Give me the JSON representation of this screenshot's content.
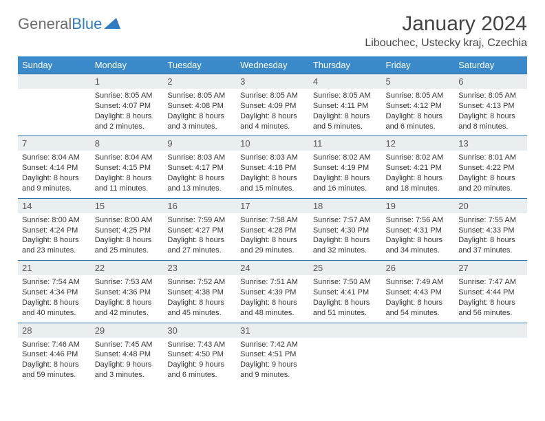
{
  "logo": {
    "text_gray": "General",
    "text_blue": "Blue"
  },
  "title": "January 2024",
  "location": "Libouchec, Ustecky kraj, Czechia",
  "colors": {
    "header_bg": "#3a8acb",
    "header_text": "#ffffff",
    "daynum_bg": "#e9eef1",
    "border_top": "#2f6fa3",
    "body_text": "#333333",
    "logo_gray": "#6b6b6b",
    "logo_blue": "#2f7dc0"
  },
  "weekdays": [
    "Sunday",
    "Monday",
    "Tuesday",
    "Wednesday",
    "Thursday",
    "Friday",
    "Saturday"
  ],
  "weeks": [
    {
      "nums": [
        "",
        "1",
        "2",
        "3",
        "4",
        "5",
        "6"
      ],
      "cells": [
        {
          "sunrise": "",
          "sunset": "",
          "daylight": ""
        },
        {
          "sunrise": "Sunrise: 8:05 AM",
          "sunset": "Sunset: 4:07 PM",
          "daylight": "Daylight: 8 hours and 2 minutes."
        },
        {
          "sunrise": "Sunrise: 8:05 AM",
          "sunset": "Sunset: 4:08 PM",
          "daylight": "Daylight: 8 hours and 3 minutes."
        },
        {
          "sunrise": "Sunrise: 8:05 AM",
          "sunset": "Sunset: 4:09 PM",
          "daylight": "Daylight: 8 hours and 4 minutes."
        },
        {
          "sunrise": "Sunrise: 8:05 AM",
          "sunset": "Sunset: 4:11 PM",
          "daylight": "Daylight: 8 hours and 5 minutes."
        },
        {
          "sunrise": "Sunrise: 8:05 AM",
          "sunset": "Sunset: 4:12 PM",
          "daylight": "Daylight: 8 hours and 6 minutes."
        },
        {
          "sunrise": "Sunrise: 8:05 AM",
          "sunset": "Sunset: 4:13 PM",
          "daylight": "Daylight: 8 hours and 8 minutes."
        }
      ]
    },
    {
      "nums": [
        "7",
        "8",
        "9",
        "10",
        "11",
        "12",
        "13"
      ],
      "cells": [
        {
          "sunrise": "Sunrise: 8:04 AM",
          "sunset": "Sunset: 4:14 PM",
          "daylight": "Daylight: 8 hours and 9 minutes."
        },
        {
          "sunrise": "Sunrise: 8:04 AM",
          "sunset": "Sunset: 4:15 PM",
          "daylight": "Daylight: 8 hours and 11 minutes."
        },
        {
          "sunrise": "Sunrise: 8:03 AM",
          "sunset": "Sunset: 4:17 PM",
          "daylight": "Daylight: 8 hours and 13 minutes."
        },
        {
          "sunrise": "Sunrise: 8:03 AM",
          "sunset": "Sunset: 4:18 PM",
          "daylight": "Daylight: 8 hours and 15 minutes."
        },
        {
          "sunrise": "Sunrise: 8:02 AM",
          "sunset": "Sunset: 4:19 PM",
          "daylight": "Daylight: 8 hours and 16 minutes."
        },
        {
          "sunrise": "Sunrise: 8:02 AM",
          "sunset": "Sunset: 4:21 PM",
          "daylight": "Daylight: 8 hours and 18 minutes."
        },
        {
          "sunrise": "Sunrise: 8:01 AM",
          "sunset": "Sunset: 4:22 PM",
          "daylight": "Daylight: 8 hours and 20 minutes."
        }
      ]
    },
    {
      "nums": [
        "14",
        "15",
        "16",
        "17",
        "18",
        "19",
        "20"
      ],
      "cells": [
        {
          "sunrise": "Sunrise: 8:00 AM",
          "sunset": "Sunset: 4:24 PM",
          "daylight": "Daylight: 8 hours and 23 minutes."
        },
        {
          "sunrise": "Sunrise: 8:00 AM",
          "sunset": "Sunset: 4:25 PM",
          "daylight": "Daylight: 8 hours and 25 minutes."
        },
        {
          "sunrise": "Sunrise: 7:59 AM",
          "sunset": "Sunset: 4:27 PM",
          "daylight": "Daylight: 8 hours and 27 minutes."
        },
        {
          "sunrise": "Sunrise: 7:58 AM",
          "sunset": "Sunset: 4:28 PM",
          "daylight": "Daylight: 8 hours and 29 minutes."
        },
        {
          "sunrise": "Sunrise: 7:57 AM",
          "sunset": "Sunset: 4:30 PM",
          "daylight": "Daylight: 8 hours and 32 minutes."
        },
        {
          "sunrise": "Sunrise: 7:56 AM",
          "sunset": "Sunset: 4:31 PM",
          "daylight": "Daylight: 8 hours and 34 minutes."
        },
        {
          "sunrise": "Sunrise: 7:55 AM",
          "sunset": "Sunset: 4:33 PM",
          "daylight": "Daylight: 8 hours and 37 minutes."
        }
      ]
    },
    {
      "nums": [
        "21",
        "22",
        "23",
        "24",
        "25",
        "26",
        "27"
      ],
      "cells": [
        {
          "sunrise": "Sunrise: 7:54 AM",
          "sunset": "Sunset: 4:34 PM",
          "daylight": "Daylight: 8 hours and 40 minutes."
        },
        {
          "sunrise": "Sunrise: 7:53 AM",
          "sunset": "Sunset: 4:36 PM",
          "daylight": "Daylight: 8 hours and 42 minutes."
        },
        {
          "sunrise": "Sunrise: 7:52 AM",
          "sunset": "Sunset: 4:38 PM",
          "daylight": "Daylight: 8 hours and 45 minutes."
        },
        {
          "sunrise": "Sunrise: 7:51 AM",
          "sunset": "Sunset: 4:39 PM",
          "daylight": "Daylight: 8 hours and 48 minutes."
        },
        {
          "sunrise": "Sunrise: 7:50 AM",
          "sunset": "Sunset: 4:41 PM",
          "daylight": "Daylight: 8 hours and 51 minutes."
        },
        {
          "sunrise": "Sunrise: 7:49 AM",
          "sunset": "Sunset: 4:43 PM",
          "daylight": "Daylight: 8 hours and 54 minutes."
        },
        {
          "sunrise": "Sunrise: 7:47 AM",
          "sunset": "Sunset: 4:44 PM",
          "daylight": "Daylight: 8 hours and 56 minutes."
        }
      ]
    },
    {
      "nums": [
        "28",
        "29",
        "30",
        "31",
        "",
        "",
        ""
      ],
      "cells": [
        {
          "sunrise": "Sunrise: 7:46 AM",
          "sunset": "Sunset: 4:46 PM",
          "daylight": "Daylight: 8 hours and 59 minutes."
        },
        {
          "sunrise": "Sunrise: 7:45 AM",
          "sunset": "Sunset: 4:48 PM",
          "daylight": "Daylight: 9 hours and 3 minutes."
        },
        {
          "sunrise": "Sunrise: 7:43 AM",
          "sunset": "Sunset: 4:50 PM",
          "daylight": "Daylight: 9 hours and 6 minutes."
        },
        {
          "sunrise": "Sunrise: 7:42 AM",
          "sunset": "Sunset: 4:51 PM",
          "daylight": "Daylight: 9 hours and 9 minutes."
        },
        {
          "sunrise": "",
          "sunset": "",
          "daylight": ""
        },
        {
          "sunrise": "",
          "sunset": "",
          "daylight": ""
        },
        {
          "sunrise": "",
          "sunset": "",
          "daylight": ""
        }
      ]
    }
  ]
}
